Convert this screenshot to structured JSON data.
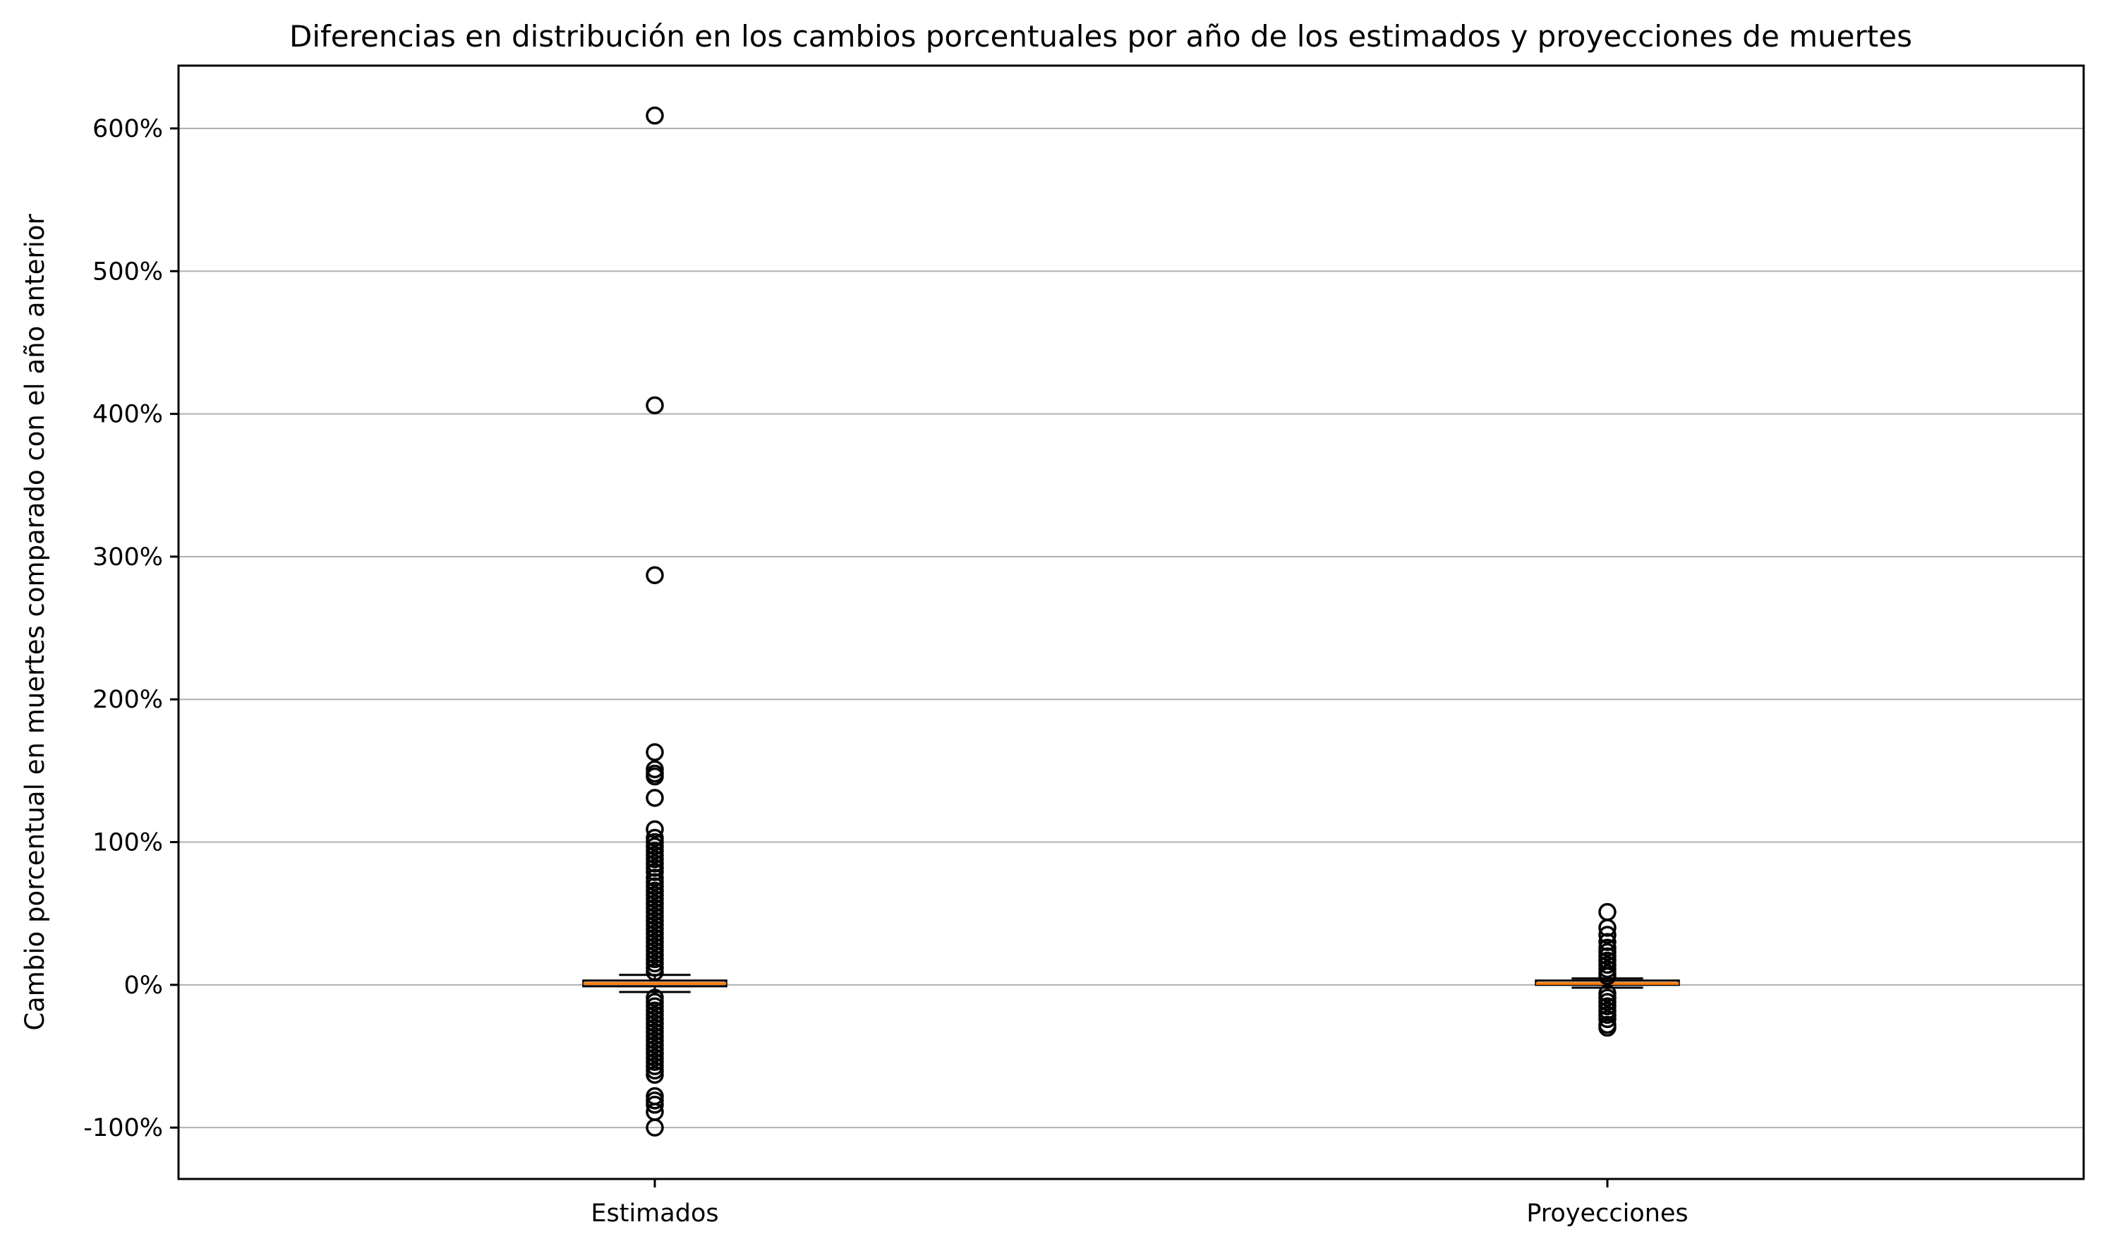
{
  "chart_data": {
    "type": "boxplot",
    "title": "Diferencias en distribución en los cambios porcentuales por año de los estimados y proyecciones de muertes",
    "xlabel": "",
    "ylabel": "Cambio porcentual en muertes comparado con el año anterior",
    "ylim": [
      -136,
      644
    ],
    "yticks": [
      -100,
      0,
      100,
      200,
      300,
      400,
      500,
      600
    ],
    "ytick_labels": [
      "-100%",
      "0%",
      "100%",
      "200%",
      "300%",
      "400%",
      "500%",
      "600%"
    ],
    "grid": "y",
    "categories": [
      "Estimados",
      "Proyecciones"
    ],
    "colors": {
      "box": "#000000",
      "median": "#ff7f0e",
      "grid": "#b0b0b0"
    },
    "boxes": [
      {
        "name": "Estimados",
        "whisker_low": -5,
        "q1": -1,
        "median": 1,
        "q3": 3,
        "whisker_high": 7,
        "outliers": [
          609,
          406,
          287,
          163,
          151,
          148,
          146,
          131,
          109,
          103,
          100,
          97,
          94,
          91,
          88,
          85,
          82,
          79,
          75,
          72,
          69,
          66,
          63,
          60,
          57,
          54,
          51,
          48,
          45,
          42,
          39,
          36,
          33,
          30,
          27,
          24,
          21,
          18,
          15,
          12,
          9,
          -9,
          -12,
          -15,
          -18,
          -21,
          -24,
          -27,
          -30,
          -33,
          -36,
          -39,
          -42,
          -45,
          -48,
          -51,
          -54,
          -57,
          -60,
          -63,
          -78,
          -81,
          -84,
          -89,
          -100
        ]
      },
      {
        "name": "Proyecciones",
        "whisker_low": -2,
        "q1": 0,
        "median": 1,
        "q3": 3,
        "whisker_high": 4.5,
        "outliers": [
          51,
          40,
          35,
          30,
          26,
          23,
          20,
          17,
          14,
          11,
          8,
          6,
          -6,
          -9,
          -12,
          -15,
          -18,
          -21,
          -24,
          -28,
          -30
        ]
      }
    ]
  }
}
